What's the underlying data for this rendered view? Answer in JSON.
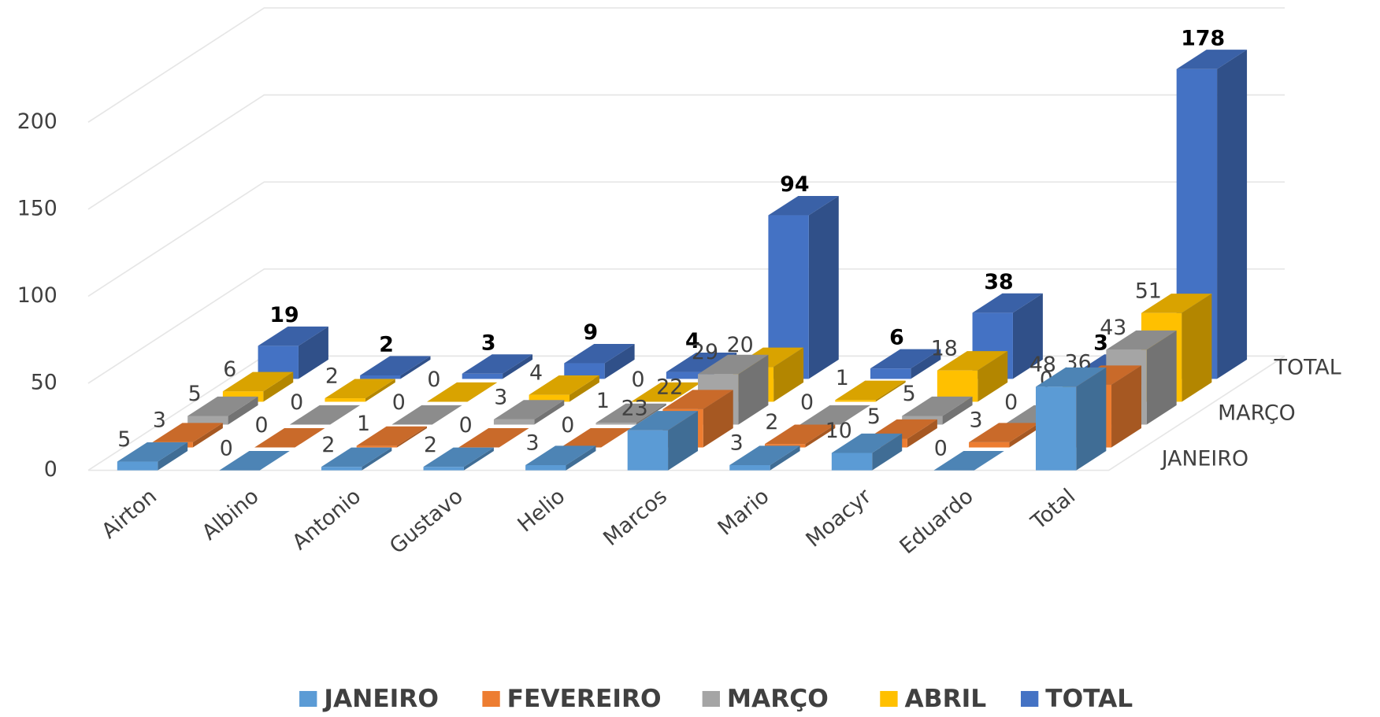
{
  "chart_data": {
    "type": "bar3d",
    "categories": [
      "Airton",
      "Albino",
      "Antonio",
      "Gustavo",
      "Helio",
      "Marcos",
      "Mario",
      "Moacyr",
      "Eduardo",
      "Total"
    ],
    "series": [
      {
        "name": "JANEIRO",
        "color": "#5b9bd5",
        "values": [
          5,
          0,
          2,
          2,
          3,
          23,
          3,
          10,
          0,
          48
        ]
      },
      {
        "name": "FEVEREIRO",
        "color": "#ed7d31",
        "values": [
          3,
          0,
          1,
          0,
          0,
          22,
          2,
          5,
          3,
          36
        ]
      },
      {
        "name": "MARÇO",
        "color": "#a5a5a5",
        "values": [
          5,
          0,
          0,
          3,
          1,
          29,
          0,
          5,
          0,
          43
        ]
      },
      {
        "name": "ABRIL",
        "color": "#ffc000",
        "values": [
          6,
          2,
          0,
          4,
          0,
          20,
          1,
          18,
          0,
          51
        ]
      },
      {
        "name": "TOTAL",
        "color": "#4472c4",
        "values": [
          19,
          2,
          3,
          9,
          4,
          94,
          6,
          38,
          3,
          178
        ]
      }
    ],
    "ylim": [
      0,
      200
    ],
    "yticks": [
      0,
      50,
      100,
      150,
      200
    ],
    "grid": true,
    "legend": "bottom"
  }
}
